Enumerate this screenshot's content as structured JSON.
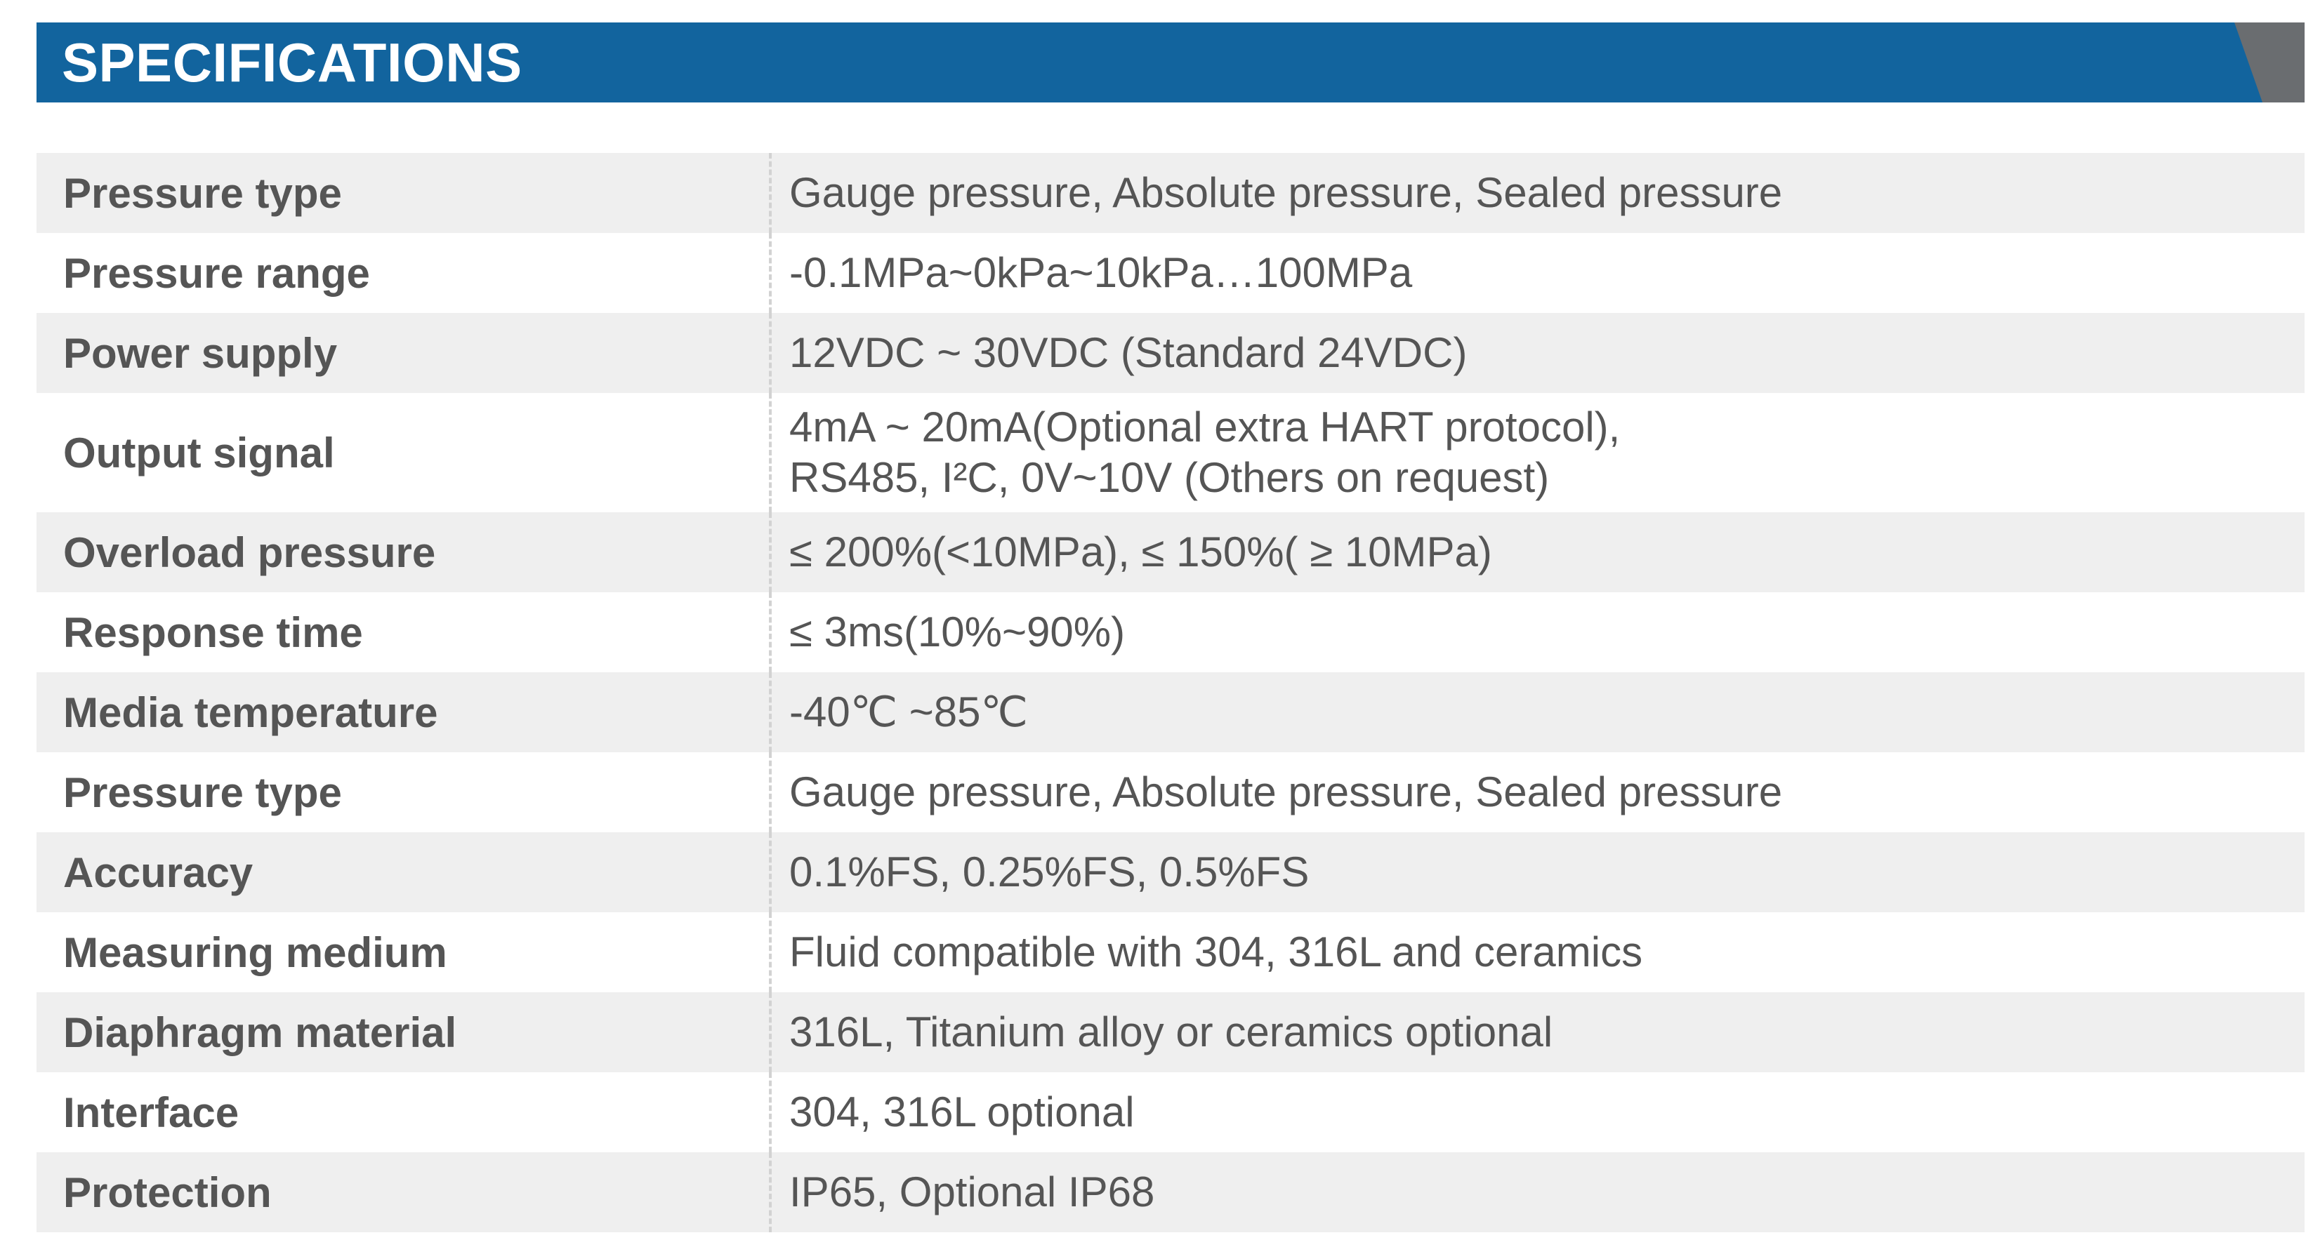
{
  "header": {
    "title": "SPECIFICATIONS",
    "accent_color": "#12649e",
    "corner_color": "#6a6d70"
  },
  "specs": [
    {
      "label": "Pressure type",
      "value": "Gauge pressure, Absolute pressure, Sealed pressure"
    },
    {
      "label": "Pressure range",
      "value": "-0.1MPa~0kPa~10kPa…100MPa"
    },
    {
      "label": "Power supply",
      "value": "12VDC  ~  30VDC  (Standard 24VDC)"
    },
    {
      "label": "Output signal",
      "value_lines": [
        "4mA  ~  20mA(Optional extra HART protocol),",
        "RS485, I²C, 0V~10V (Others on request)"
      ]
    },
    {
      "label": "Overload pressure",
      "value": "≤ 200%(<10MPa), ≤ 150%( ≥ 10MPa)"
    },
    {
      "label": "Response time",
      "value": "≤ 3ms(10%~90%)"
    },
    {
      "label": "Media temperature",
      "value": "-40℃ ~85℃"
    },
    {
      "label": "Pressure type",
      "value": "Gauge pressure, Absolute pressure, Sealed pressure"
    },
    {
      "label": "Accuracy",
      "value": "0.1%FS, 0.25%FS, 0.5%FS"
    },
    {
      "label": "Measuring medium",
      "value": "Fluid compatible with 304, 316L and ceramics"
    },
    {
      "label": "Diaphragm material",
      "value": "316L, Titanium alloy or ceramics optional"
    },
    {
      "label": "Interface",
      "value": "304, 316L optional"
    },
    {
      "label": "Protection",
      "value": "IP65, Optional IP68"
    }
  ]
}
